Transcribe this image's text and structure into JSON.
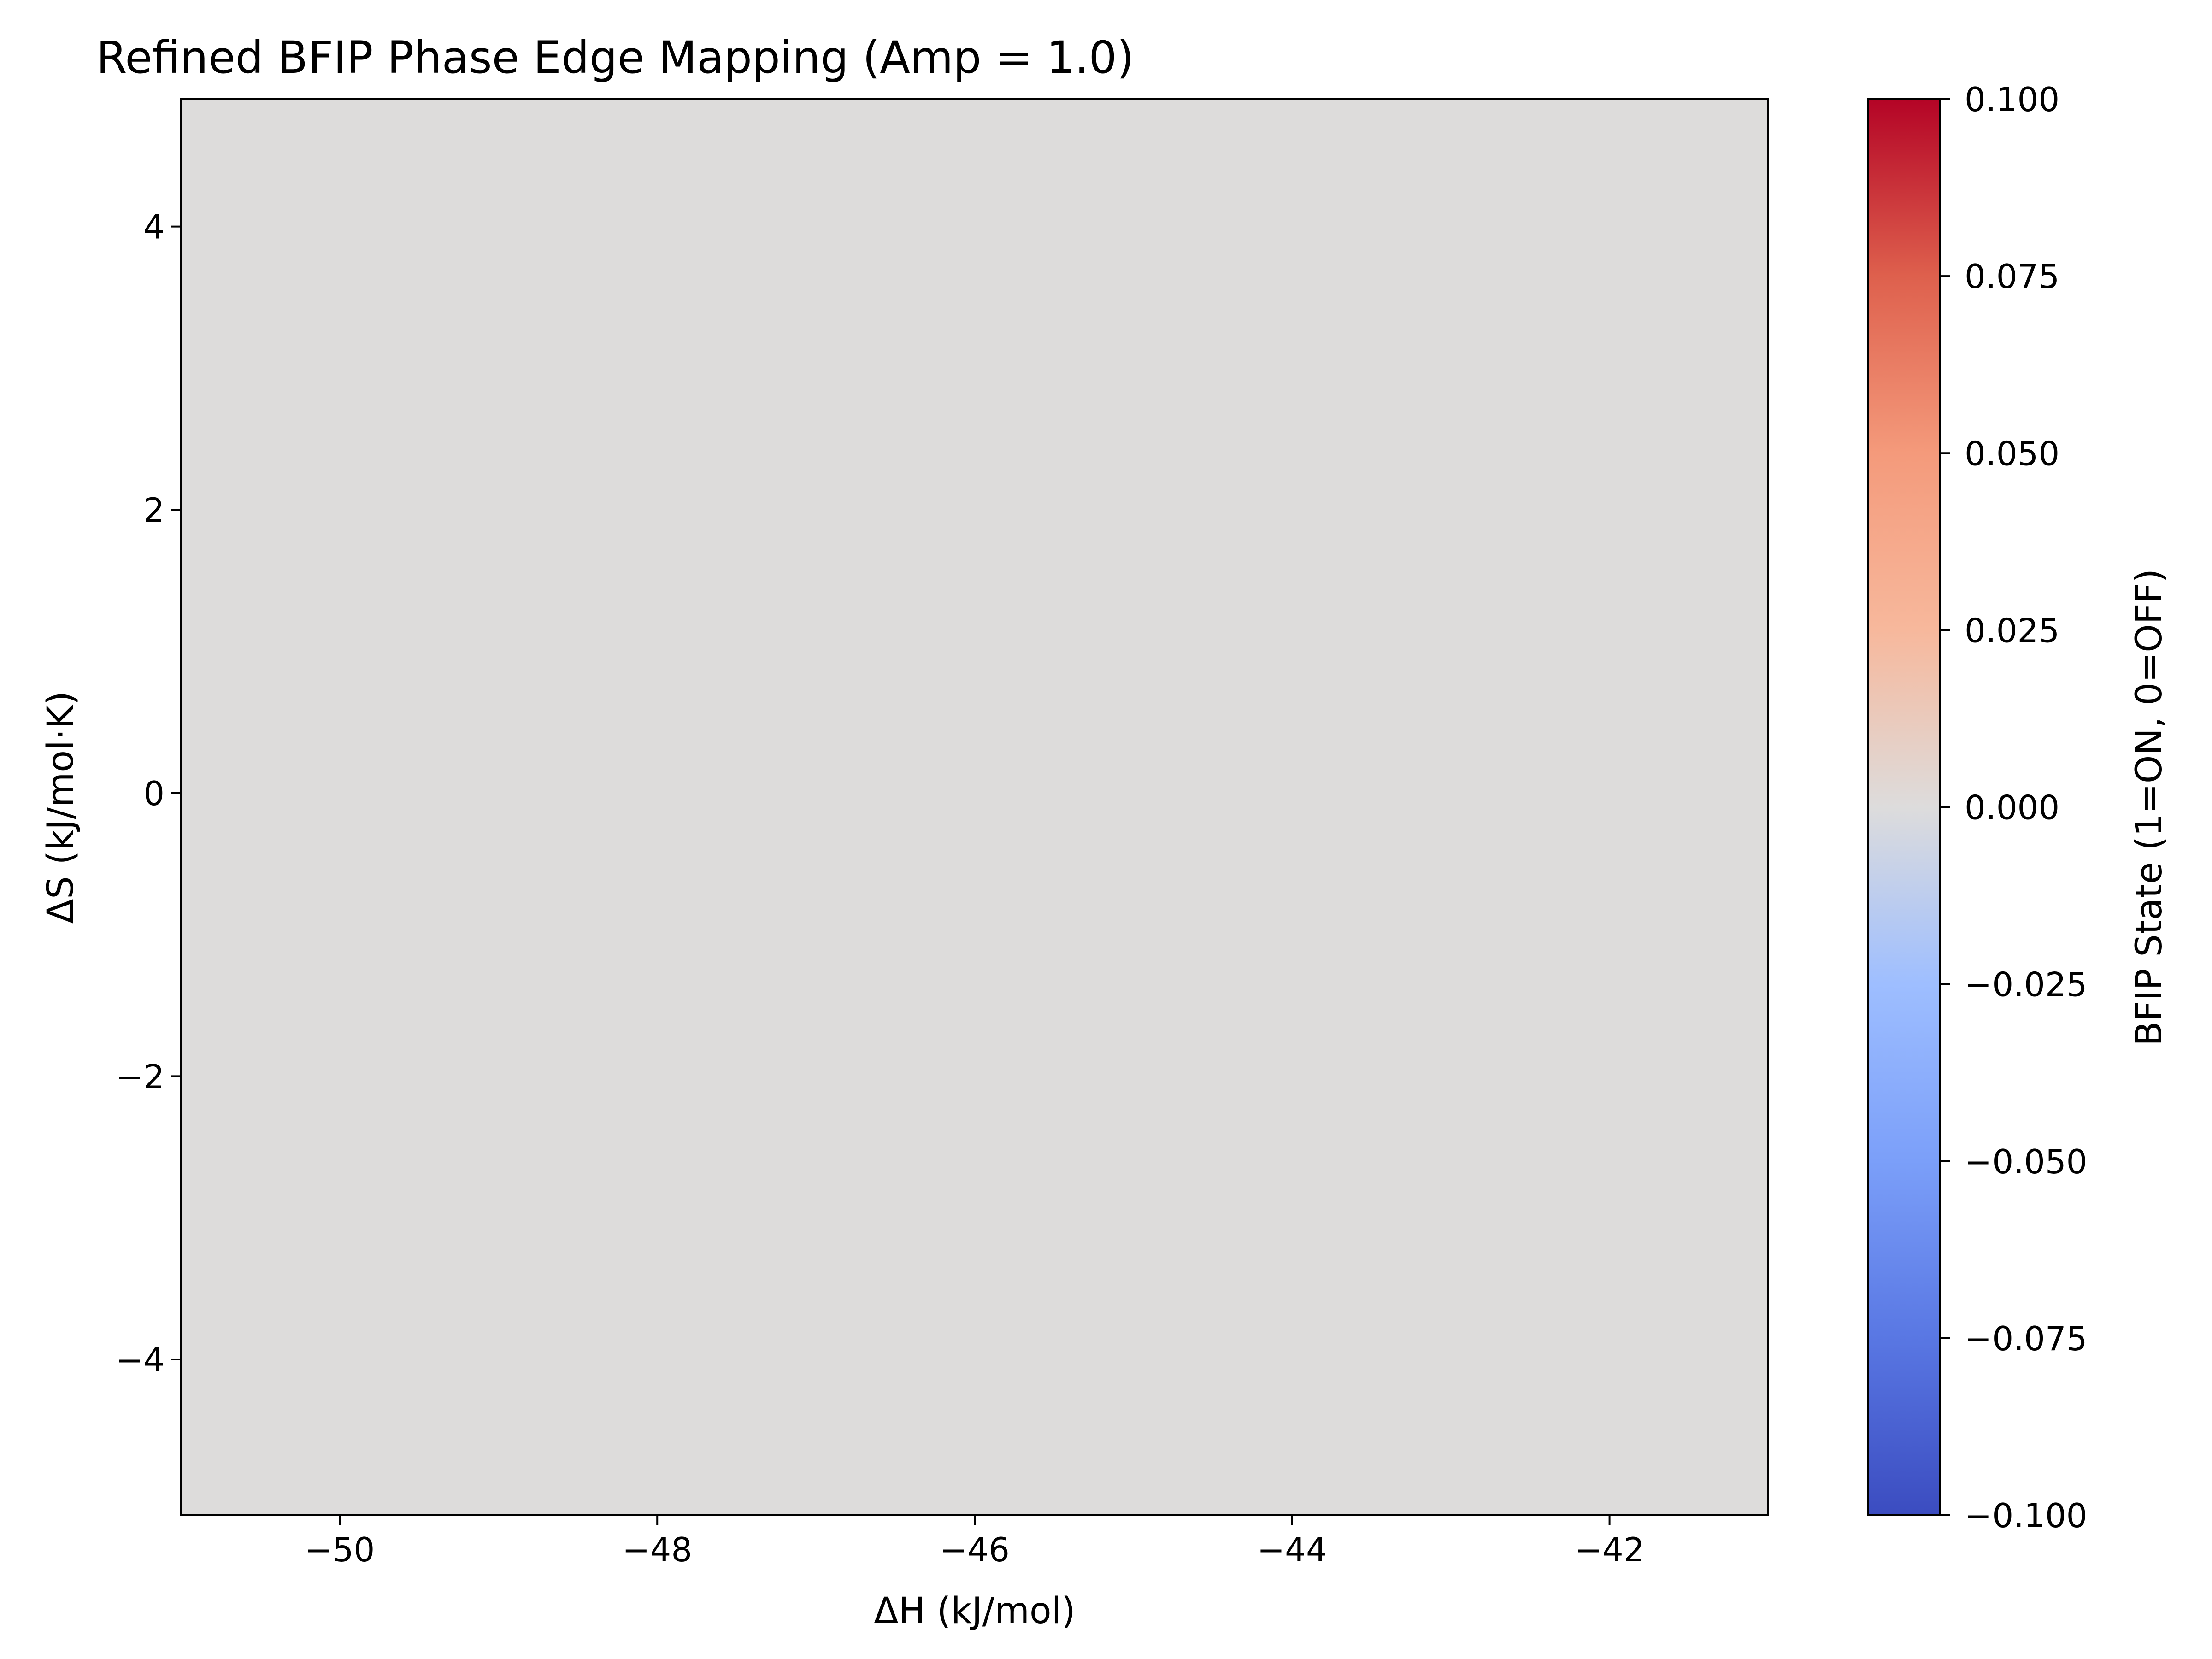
{
  "chart_data": {
    "type": "heatmap",
    "title": "Refined BFIP Phase Edge Mapping (Amp = 1.0)",
    "xlabel": "ΔH (kJ/mol)",
    "ylabel": "ΔS (kJ/mol·K)",
    "x_range": [
      -51,
      -41
    ],
    "y_range": [
      -5.1,
      4.9
    ],
    "x_ticks": [
      -50,
      -48,
      -46,
      -44,
      -42
    ],
    "x_tick_labels": [
      "−50",
      "−48",
      "−46",
      "−44",
      "−42"
    ],
    "y_ticks": [
      -4,
      -2,
      0,
      2,
      4
    ],
    "y_tick_labels": [
      "−4",
      "−2",
      "0",
      "2",
      "4"
    ],
    "values": [
      [
        0.0
      ]
    ],
    "uniform_value": 0.0,
    "fill_color": "#dddcdb",
    "grid": false,
    "colorbar": {
      "label": "BFIP State (1=ON, 0=OFF)",
      "colormap": "coolwarm",
      "range": [
        -0.1,
        0.1
      ],
      "ticks": [
        -0.1,
        -0.075,
        -0.05,
        -0.025,
        0.0,
        0.025,
        0.05,
        0.075,
        0.1
      ],
      "tick_labels": [
        "−0.100",
        "−0.075",
        "−0.050",
        "−0.025",
        "0.000",
        "0.025",
        "0.050",
        "0.075",
        "0.100"
      ],
      "placement": "right",
      "stops": [
        {
          "at": 0.0,
          "color": "#3b4cc0"
        },
        {
          "at": 0.125,
          "color": "#5977e3"
        },
        {
          "at": 0.25,
          "color": "#7b9ff9"
        },
        {
          "at": 0.375,
          "color": "#9ebeff"
        },
        {
          "at": 0.5,
          "color": "#dddcdc"
        },
        {
          "at": 0.625,
          "color": "#f7b89c"
        },
        {
          "at": 0.75,
          "color": "#f49a7b"
        },
        {
          "at": 0.875,
          "color": "#de604d"
        },
        {
          "at": 1.0,
          "color": "#b40426"
        }
      ]
    }
  }
}
